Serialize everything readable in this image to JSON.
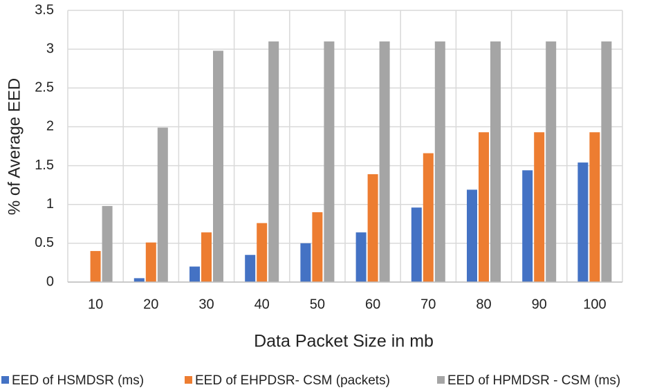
{
  "chart_data": {
    "type": "bar",
    "categories": [
      "10",
      "20",
      "30",
      "40",
      "50",
      "60",
      "70",
      "80",
      "90",
      "100"
    ],
    "series": [
      {
        "name": "EED of HSMDSR (ms)",
        "color": "#4472c4",
        "values": [
          0,
          0.05,
          0.2,
          0.35,
          0.5,
          0.64,
          0.96,
          1.19,
          1.44,
          1.54
        ]
      },
      {
        "name": "EED of EHPDSR- CSM (packets)",
        "color": "#ed7d31",
        "values": [
          0.4,
          0.51,
          0.64,
          0.76,
          0.9,
          1.39,
          1.66,
          1.93,
          1.93,
          1.93
        ]
      },
      {
        "name": "EED of HPMDSR - CSM (ms)",
        "color": "#a5a5a5",
        "values": [
          0.98,
          1.99,
          2.98,
          3.1,
          3.1,
          3.1,
          3.1,
          3.1,
          3.1,
          3.1
        ]
      }
    ],
    "x_label": "Data Packet Size in mb",
    "y_label": "% of Average EED",
    "ylim": [
      0,
      3.5
    ],
    "yticks": [
      0,
      0.5,
      1,
      1.5,
      2,
      2.5,
      3,
      3.5
    ],
    "grid": true
  }
}
